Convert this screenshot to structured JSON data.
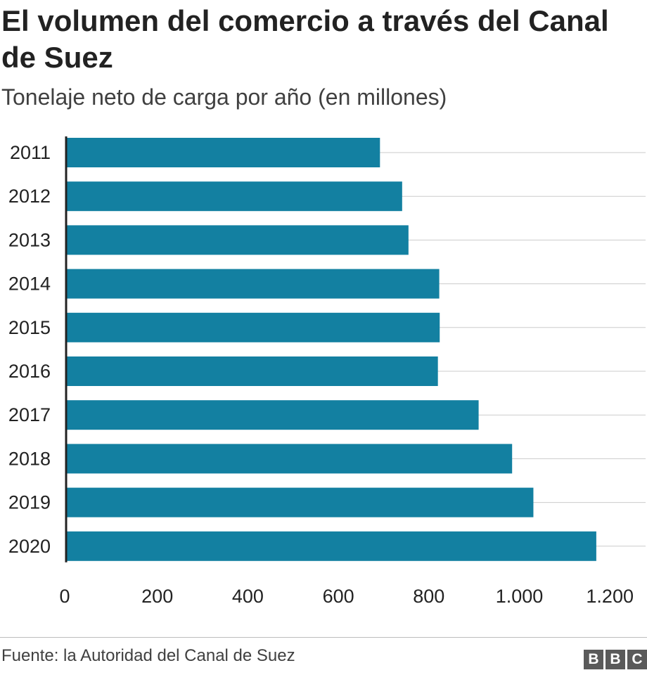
{
  "chart_data": {
    "type": "bar",
    "orientation": "horizontal",
    "title": "El volumen del comercio a través del Canal de Suez",
    "subtitle": "Tonelaje neto de carga por año (en millones)",
    "categories": [
      "2011",
      "2012",
      "2013",
      "2014",
      "2015",
      "2016",
      "2017",
      "2018",
      "2019",
      "2020"
    ],
    "values": [
      692,
      741,
      755,
      823,
      824,
      820,
      910,
      984,
      1031,
      1170
    ],
    "xlim": [
      0,
      1250
    ],
    "xticks": [
      0,
      200,
      400,
      600,
      800,
      1000,
      1200
    ],
    "xtick_labels": [
      "0",
      "200",
      "400",
      "600",
      "800",
      "1.000",
      "1.200"
    ],
    "grid": true,
    "bar_color": "#1380A1",
    "grid_color": "#cbcbcb"
  },
  "footer": {
    "source": "Fuente: la Autoridad del Canal de Suez",
    "logo_letters": [
      "B",
      "B",
      "C"
    ]
  }
}
